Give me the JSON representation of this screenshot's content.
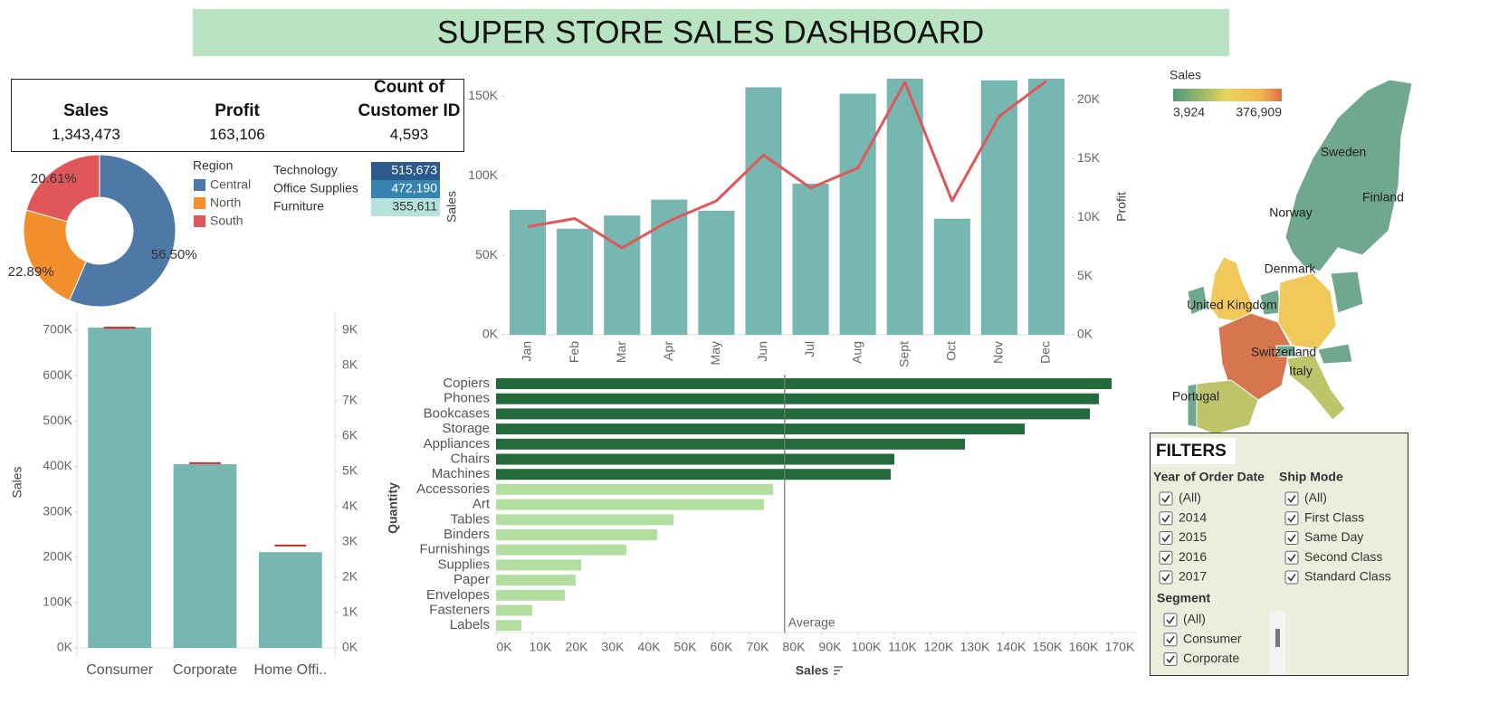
{
  "title": "SUPER STORE SALES DASHBOARD",
  "kpis": [
    {
      "label": "Sales",
      "value": "1,343,473"
    },
    {
      "label": "Profit",
      "value": "163,106"
    },
    {
      "label": "Count of Customer ID",
      "value": "4,593"
    }
  ],
  "chart_data": [
    {
      "type": "donut",
      "legend_title": "Region",
      "categories": [
        "Central",
        "North",
        "South"
      ],
      "values": [
        56.5,
        22.89,
        20.61
      ],
      "value_labels": [
        "56.50%",
        "22.89%",
        "20.61%"
      ],
      "colors": [
        "#4e79a7",
        "#f28e2b",
        "#e15759"
      ]
    },
    {
      "type": "heatmap",
      "categories": [
        "Technology",
        "Office Supplies",
        "Furniture"
      ],
      "values": [
        515673,
        472190,
        355611
      ],
      "value_labels": [
        "515,673",
        "472,190",
        "355,611"
      ],
      "colors": [
        "#2c5a8d",
        "#3784b0",
        "#b6e2dc"
      ]
    },
    {
      "type": "combo",
      "y_label": "Sales",
      "y2_label": "Profit",
      "categories": [
        "Jan",
        "Feb",
        "Mar",
        "Apr",
        "May",
        "Jun",
        "Jul",
        "Aug",
        "Sept",
        "Oct",
        "Nov",
        "Dec"
      ],
      "series": [
        {
          "mark": "bar",
          "color": "#76b7b2",
          "values": [
            78600,
            66700,
            75000,
            85000,
            78000,
            155600,
            95000,
            151600,
            161000,
            73000,
            160000,
            161000
          ]
        },
        {
          "mark": "line",
          "axis": "y2",
          "color": "#e15759",
          "values": [
            9200,
            9900,
            7400,
            9700,
            11400,
            15300,
            12500,
            14200,
            21500,
            11400,
            18600,
            21600
          ]
        }
      ],
      "ylim": [
        0,
        161000
      ],
      "yticks": [
        {
          "value": 0,
          "label": "0K"
        },
        {
          "value": 50000,
          "label": "50K"
        },
        {
          "value": 100000,
          "label": "100K"
        },
        {
          "value": 150000,
          "label": "150K"
        }
      ],
      "y2lim": [
        0,
        21800
      ],
      "y2ticks": [
        {
          "value": 0,
          "label": "0K"
        },
        {
          "value": 5000,
          "label": "5K"
        },
        {
          "value": 10000,
          "label": "10K"
        },
        {
          "value": 15000,
          "label": "15K"
        },
        {
          "value": 20000,
          "label": "20K"
        }
      ]
    },
    {
      "type": "combo",
      "y_label": "Sales",
      "categories": [
        "Consumer",
        "Corporate",
        "Home Offi.."
      ],
      "series": [
        {
          "mark": "bar",
          "color": "#76b7b2",
          "values": [
            706000,
            405000,
            211000
          ]
        },
        {
          "mark": "tick",
          "axis": "y2",
          "color": "#d62728",
          "values": [
            9070,
            5230,
            2900
          ]
        }
      ],
      "ylim": [
        0,
        730000
      ],
      "yticks": [
        {
          "value": 0,
          "label": "0K"
        },
        {
          "value": 100000,
          "label": "100K"
        },
        {
          "value": 200000,
          "label": "200K"
        },
        {
          "value": 300000,
          "label": "300K"
        },
        {
          "value": 400000,
          "label": "400K"
        },
        {
          "value": 500000,
          "label": "500K"
        },
        {
          "value": 600000,
          "label": "600K"
        },
        {
          "value": 700000,
          "label": "700K"
        }
      ],
      "y2lim": [
        0,
        9380
      ],
      "y2ticks": [
        {
          "value": 0,
          "label": "0K"
        },
        {
          "value": 1000,
          "label": "1K"
        },
        {
          "value": 2000,
          "label": "2K"
        },
        {
          "value": 3000,
          "label": "3K"
        },
        {
          "value": 4000,
          "label": "4K"
        },
        {
          "value": 5000,
          "label": "5K"
        },
        {
          "value": 6000,
          "label": "6K"
        },
        {
          "value": 7000,
          "label": "7K"
        },
        {
          "value": 8000,
          "label": "8K"
        },
        {
          "value": 9000,
          "label": "9K"
        }
      ]
    },
    {
      "type": "hbar",
      "x_label": "Sales",
      "y_label": "Quantity",
      "categories": [
        "Copiers",
        "Phones",
        "Bookcases",
        "Storage",
        "Appliances",
        "Chairs",
        "Machines",
        "Accessories",
        "Art",
        "Tables",
        "Binders",
        "Furnishings",
        "Supplies",
        "Paper",
        "Envelopes",
        "Fasteners",
        "Labels"
      ],
      "values": [
        170000,
        166500,
        164000,
        146000,
        129500,
        110000,
        109000,
        76500,
        74000,
        49000,
        44500,
        36000,
        23500,
        22000,
        19000,
        10000,
        7000
      ],
      "reference_line": {
        "label": "Average",
        "value": 79700
      },
      "colors": {
        "above_average": "#236b3b",
        "below_average": "#b2dfa0"
      },
      "xlim": [
        0,
        177000
      ],
      "xticks": [
        {
          "value": 0,
          "label": "0K"
        },
        {
          "value": 10000,
          "label": "10K"
        },
        {
          "value": 20000,
          "label": "20K"
        },
        {
          "value": 30000,
          "label": "30K"
        },
        {
          "value": 40000,
          "label": "40K"
        },
        {
          "value": 50000,
          "label": "50K"
        },
        {
          "value": 60000,
          "label": "60K"
        },
        {
          "value": 70000,
          "label": "70K"
        },
        {
          "value": 80000,
          "label": "80K"
        },
        {
          "value": 90000,
          "label": "90K"
        },
        {
          "value": 100000,
          "label": "100K"
        },
        {
          "value": 110000,
          "label": "110K"
        },
        {
          "value": 120000,
          "label": "120K"
        },
        {
          "value": 130000,
          "label": "130K"
        },
        {
          "value": 140000,
          "label": "140K"
        },
        {
          "value": 150000,
          "label": "150K"
        },
        {
          "value": 160000,
          "label": "160K"
        },
        {
          "value": 170000,
          "label": "170K"
        }
      ]
    }
  ],
  "map": {
    "legend_title": "Sales",
    "legend_min": "3,924",
    "legend_max": "376,909",
    "countries": [
      "Sweden",
      "Finland",
      "Norway",
      "Denmark",
      "United Kingdom",
      "Switzerland",
      "Italy",
      "Portugal"
    ]
  },
  "filters": {
    "title": "FILTERS",
    "groups": [
      {
        "title": "Year of Order Date",
        "options": [
          "(All)",
          "2014",
          "2015",
          "2016",
          "2017"
        ]
      },
      {
        "title": "Ship Mode",
        "options": [
          "(All)",
          "First Class",
          "Same Day",
          "Second Class",
          "Standard Class"
        ]
      },
      {
        "title": "Segment",
        "options": [
          "(All)",
          "Consumer",
          "Corporate"
        ]
      }
    ]
  }
}
